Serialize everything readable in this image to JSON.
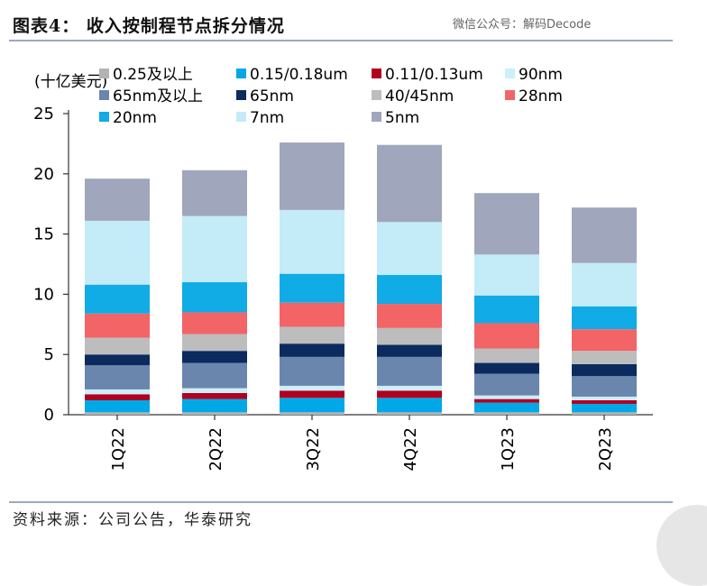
{
  "header": {
    "title": "图表4： 收入按制程节点拆分情况",
    "watermark": "微信公众号：解码Decode"
  },
  "footer": {
    "source": "资料来源：公司公告，华泰研究"
  },
  "colors": {
    "0.25及以上": "#b3b3b3",
    "0.15/0.18um": "#00a8e8",
    "0.11/0.13um": "#b0001e",
    "90nm": "#cdeefa",
    "65nm及以上": "#6b86ad",
    "65nm": "#0b2b5e",
    "40/45nm": "#bdbdbd",
    "28nm": "#f26466",
    "20nm": "#11abe6",
    "7nm": "#c3ebf8",
    "5nm": "#a0a6bb"
  },
  "chart_data": {
    "type": "bar",
    "stacked": true,
    "unit_label": "(十亿美元)",
    "ylim": [
      0,
      25
    ],
    "yticks": [
      0,
      5,
      10,
      15,
      20,
      25
    ],
    "categories": [
      "1Q22",
      "2Q22",
      "3Q22",
      "4Q22",
      "1Q23",
      "2Q23"
    ],
    "legend": [
      "0.25及以上",
      "0.15/0.18um",
      "0.11/0.13um",
      "90nm",
      "65nm及以上",
      "65nm",
      "40/45nm",
      "28nm",
      "20nm",
      "7nm",
      "5nm"
    ],
    "series": [
      {
        "name": "0.25及以上",
        "values": [
          0.2,
          0.2,
          0.2,
          0.2,
          0.2,
          0.2
        ]
      },
      {
        "name": "0.15/0.18um",
        "values": [
          1.0,
          1.1,
          1.2,
          1.2,
          0.8,
          0.7
        ]
      },
      {
        "name": "0.11/0.13um",
        "values": [
          0.5,
          0.5,
          0.6,
          0.6,
          0.3,
          0.3
        ]
      },
      {
        "name": "90nm",
        "values": [
          0.4,
          0.4,
          0.4,
          0.4,
          0.3,
          0.3
        ]
      },
      {
        "name": "65nm及以上",
        "values": [
          2.0,
          2.1,
          2.4,
          2.4,
          1.8,
          1.7
        ]
      },
      {
        "name": "65nm",
        "values": [
          0.9,
          1.0,
          1.1,
          1.0,
          0.9,
          1.0
        ]
      },
      {
        "name": "40/45nm",
        "values": [
          1.4,
          1.4,
          1.4,
          1.4,
          1.2,
          1.1
        ]
      },
      {
        "name": "28nm",
        "values": [
          2.0,
          1.8,
          2.0,
          2.0,
          2.1,
          1.8
        ]
      },
      {
        "name": "20nm",
        "values": [
          2.4,
          2.5,
          2.4,
          2.4,
          2.3,
          1.9
        ]
      },
      {
        "name": "7nm",
        "values": [
          5.3,
          5.5,
          5.3,
          4.4,
          3.4,
          3.6
        ]
      },
      {
        "name": "5nm",
        "values": [
          3.5,
          3.8,
          5.6,
          6.4,
          5.1,
          4.6
        ]
      }
    ]
  }
}
